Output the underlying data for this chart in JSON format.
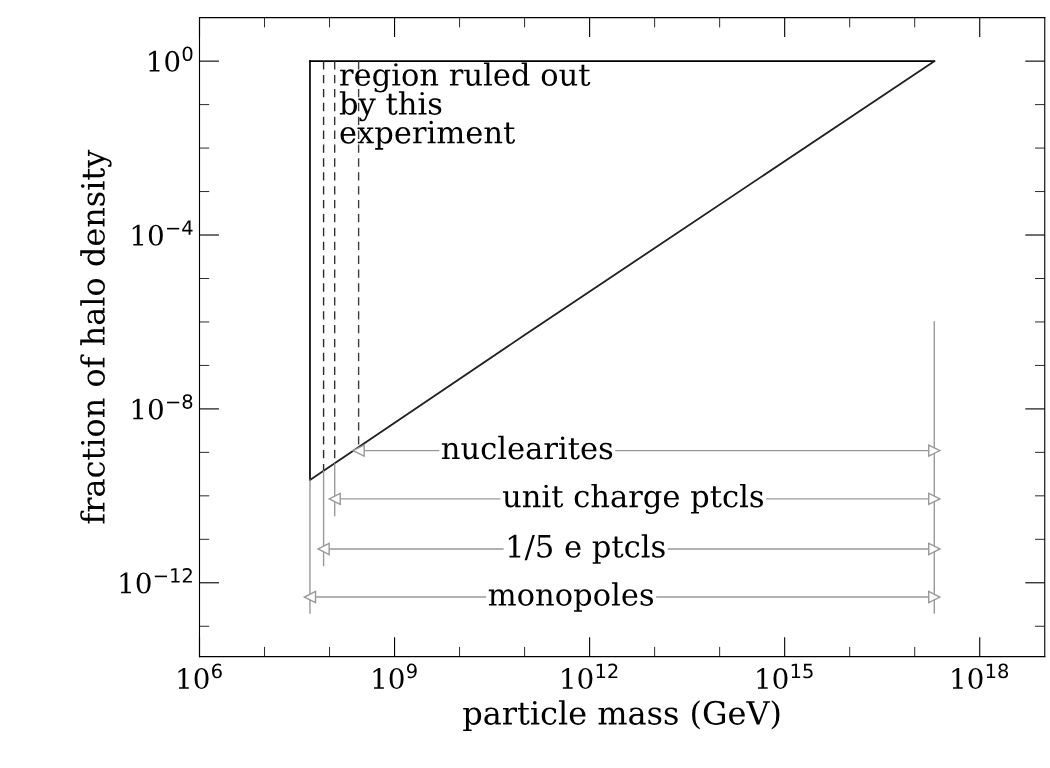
{
  "chart_data": {
    "type": "line",
    "xlabel": "particle mass (GeV)",
    "ylabel": "fraction of halo density",
    "log": "xy",
    "xlim": [
      1000000.0,
      1e+19
    ],
    "ylim": [
      2e-14,
      10
    ],
    "xticks": [
      {
        "value": 1000000.0,
        "label": "10$^{6}$"
      },
      {
        "value": 10000000.0,
        "label": null
      },
      {
        "value": 100000000.0,
        "label": null
      },
      {
        "value": 1000000000.0,
        "label": "10$^{9}$"
      },
      {
        "value": 10000000000.0,
        "label": null
      },
      {
        "value": 100000000000.0,
        "label": null
      },
      {
        "value": 1000000000000.0,
        "label": "10$^{12}$"
      },
      {
        "value": 10000000000000.0,
        "label": null
      },
      {
        "value": 100000000000000.0,
        "label": null
      },
      {
        "value": 1000000000000000.0,
        "label": "10$^{15}$"
      },
      {
        "value": 1e+16,
        "label": null
      },
      {
        "value": 1e+17,
        "label": null
      },
      {
        "value": 1e+18,
        "label": "10$^{18}$"
      }
    ],
    "yticks": [
      {
        "value": 1,
        "label": "10$^{0}$"
      },
      {
        "value": 0.1,
        "label": null
      },
      {
        "value": 0.01,
        "label": null
      },
      {
        "value": 0.001,
        "label": null
      },
      {
        "value": 0.0001,
        "label": "10$^{−4}$"
      },
      {
        "value": 1e-05,
        "label": null
      },
      {
        "value": 1e-06,
        "label": null
      },
      {
        "value": 1e-07,
        "label": null
      },
      {
        "value": 1e-08,
        "label": "10$^{−8}$"
      },
      {
        "value": 1e-09,
        "label": null
      },
      {
        "value": 1e-10,
        "label": null
      },
      {
        "value": 1e-11,
        "label": null
      },
      {
        "value": 1e-12,
        "label": "10$^{−12}$"
      },
      {
        "value": 1e-13,
        "label": null
      }
    ],
    "grid": false,
    "legend": false,
    "series": [
      {
        "color": "#000000",
        "line_style": "solid",
        "x": [
          50000000.0,
          2e+17
        ],
        "values": [
          1,
          1
        ]
      },
      {
        "color": "#101010",
        "line_style": "solid",
        "x": [
          50000000.0,
          50000000.0
        ],
        "values": [
          2.3e-10,
          1
        ]
      },
      {
        "color": "#202020",
        "line_style": "solid",
        "x": [
          50000000.0,
          100000000000.0,
          2e+17
        ],
        "values": [
          2.3e-10,
          5e-07,
          1
        ]
      },
      {
        "color": "#2a2a2a",
        "line_style": "dashed",
        "x": [
          81000000.0,
          81000000.0
        ],
        "values": [
          1,
          3.7e-10
        ]
      },
      {
        "color": "#333333",
        "line_style": "dashed",
        "x": [
          120000000.0,
          120000000.0
        ],
        "values": [
          1,
          5.4e-10
        ]
      },
      {
        "color": "#3c3c3c",
        "line_style": "dashed",
        "x": [
          280000000.0,
          280000000.0
        ],
        "values": [
          1,
          1.3e-09
        ]
      },
      {
        "color": "#999999",
        "line_style": "solid",
        "x": [
          50000000.0,
          50000000.0
        ],
        "values": [
          2.3e-10,
          2e-13
        ]
      },
      {
        "color": "#999999",
        "line_style": "solid",
        "x": [
          81000000.0,
          81000000.0
        ],
        "values": [
          3.7e-10,
          2.5e-12
        ]
      },
      {
        "color": "#999999",
        "line_style": "solid",
        "x": [
          120000000.0,
          120000000.0
        ],
        "values": [
          5.4e-10,
          3.5e-11
        ]
      },
      {
        "color": "#999999",
        "line_style": "solid",
        "x": [
          2e+17,
          2e+17
        ],
        "values": [
          1e-06,
          2e-13
        ]
      },
      {
        "color": "#999999",
        "line_style": "solid",
        "marker": "triangle",
        "x": [
          280000000.0,
          2e+17
        ],
        "values": [
          1.1e-09,
          1.1e-09
        ]
      },
      {
        "color": "#999999",
        "line_style": "solid",
        "marker": "triangle",
        "x": [
          120000000.0,
          2e+17
        ],
        "values": [
          8.5e-11,
          8.5e-11
        ]
      },
      {
        "color": "#999999",
        "line_style": "solid",
        "marker": "triangle",
        "x": [
          81000000.0,
          2e+17
        ],
        "values": [
          6e-12,
          6e-12
        ]
      },
      {
        "color": "#999999",
        "line_style": "solid",
        "marker": "triangle",
        "x": [
          50000000.0,
          2e+17
        ],
        "values": [
          4.7e-13,
          4.7e-13
        ]
      }
    ],
    "annotations": [
      "region ruled out\nby this\nexperiment",
      {
        "text": "nuclearites",
        "x": 110000000000.0,
        "y": 1.1e-09
      },
      {
        "text": "unit charge ptcls",
        "x": 4700000000000.0,
        "y": 8.5e-11
      },
      {
        "text": "1/5 e ptcls",
        "x": 870000000000.0,
        "y": 6e-12
      },
      {
        "text": "monopoles",
        "x": 520000000000.0,
        "y": 4.7e-13
      }
    ]
  }
}
